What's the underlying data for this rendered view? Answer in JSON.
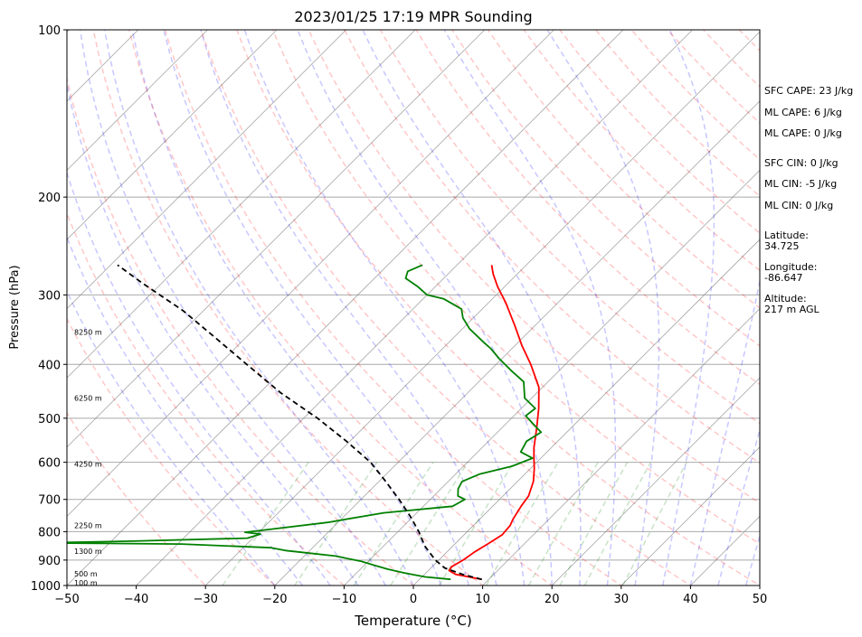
{
  "chart_data": {
    "type": "line",
    "title": "2023/01/25 17:19 MPR Sounding",
    "xlabel": "Temperature (°C)",
    "ylabel": "Pressure (hPa)",
    "xlim": [
      -50,
      50
    ],
    "ylim": [
      1000,
      100
    ],
    "y_scale": "log",
    "x_ticks": [
      -50,
      -40,
      -30,
      -20,
      -10,
      0,
      10,
      20,
      30,
      40,
      50
    ],
    "x_tick_labels": [
      "−50",
      "−40",
      "−30",
      "−20",
      "−10",
      "0",
      "10",
      "20",
      "30",
      "40",
      "50"
    ],
    "y_ticks": [
      1000,
      900,
      800,
      700,
      600,
      500,
      400,
      300,
      200,
      100
    ],
    "y_tick_labels": [
      "1000",
      "900",
      "800",
      "700",
      "600",
      "500",
      "400",
      "300",
      "200",
      "100"
    ],
    "skew": true,
    "grid": true,
    "series": [
      {
        "color": "#ff0000",
        "points": [
          [
            9.0,
            975
          ],
          [
            4.5,
            955
          ],
          [
            3.0,
            940
          ],
          [
            2.8,
            925
          ],
          [
            3.5,
            900
          ],
          [
            4.0,
            870
          ],
          [
            4.8,
            840
          ],
          [
            5.5,
            810
          ],
          [
            5.3,
            780
          ],
          [
            4.8,
            760
          ],
          [
            4.1,
            720
          ],
          [
            3.7,
            690
          ],
          [
            2.3,
            650
          ],
          [
            0.5,
            615
          ],
          [
            -1.0,
            590
          ],
          [
            -2.5,
            565
          ],
          [
            -5.0,
            520
          ],
          [
            -7.5,
            480
          ],
          [
            -10.5,
            440
          ],
          [
            -15.0,
            400
          ],
          [
            -19.0,
            370
          ],
          [
            -23.0,
            340
          ],
          [
            -27.5,
            310
          ],
          [
            -31.0,
            290
          ],
          [
            -33.5,
            275
          ],
          [
            -35.0,
            265
          ]
        ]
      },
      {
        "color": "#008000",
        "points": [
          [
            4.5,
            975
          ],
          [
            0.5,
            965
          ],
          [
            -3.0,
            950
          ],
          [
            -6.0,
            935
          ],
          [
            -8.5,
            920
          ],
          [
            -11.0,
            905
          ],
          [
            -15.5,
            885
          ],
          [
            -21.5,
            870
          ],
          [
            -23.5,
            865
          ],
          [
            -26.0,
            855
          ],
          [
            -39.5,
            842
          ],
          [
            -60.0,
            838
          ],
          [
            -47.0,
            832
          ],
          [
            -30.8,
            822
          ],
          [
            -29.5,
            808
          ],
          [
            -32.0,
            802
          ],
          [
            -28.0,
            790
          ],
          [
            -21.5,
            770
          ],
          [
            -14.8,
            740
          ],
          [
            -5.8,
            720
          ],
          [
            -5.0,
            700
          ],
          [
            -6.5,
            690
          ],
          [
            -7.5,
            670
          ],
          [
            -8.0,
            650
          ],
          [
            -6.5,
            630
          ],
          [
            -3.0,
            610
          ],
          [
            -1.2,
            590
          ],
          [
            -3.8,
            575
          ],
          [
            -4.5,
            550
          ],
          [
            -3.7,
            530
          ],
          [
            -6.3,
            510
          ],
          [
            -8.3,
            495
          ],
          [
            -8.0,
            480
          ],
          [
            -11.0,
            460
          ],
          [
            -13.5,
            430
          ],
          [
            -17.0,
            410
          ],
          [
            -20.5,
            390
          ],
          [
            -23.0,
            375
          ],
          [
            -25.0,
            365
          ],
          [
            -29.0,
            345
          ],
          [
            -31.5,
            330
          ],
          [
            -33.0,
            318
          ],
          [
            -37.0,
            305
          ],
          [
            -40.0,
            300
          ],
          [
            -42.5,
            290
          ],
          [
            -45.5,
            280
          ],
          [
            -46.2,
            272
          ],
          [
            -45.0,
            265
          ]
        ]
      },
      {
        "color": "#000000",
        "dashed": true,
        "points": [
          [
            9.0,
            975
          ],
          [
            5.5,
            955
          ],
          [
            2.0,
            930
          ],
          [
            -0.5,
            900
          ],
          [
            -4.0,
            850
          ],
          [
            -7.0,
            800
          ],
          [
            -10.5,
            750
          ],
          [
            -14.5,
            700
          ],
          [
            -19.0,
            650
          ],
          [
            -24.0,
            600
          ],
          [
            -30.5,
            550
          ],
          [
            -38.0,
            500
          ],
          [
            -47.0,
            450
          ],
          [
            -56.0,
            400
          ],
          [
            -64.0,
            360
          ],
          [
            -73.0,
            320
          ],
          [
            -83.0,
            285
          ],
          [
            -89.0,
            265
          ]
        ]
      }
    ],
    "height_labels": [
      {
        "text": "100 m",
        "pressure": 988
      },
      {
        "text": "500 m",
        "pressure": 952
      },
      {
        "text": "1300 m",
        "pressure": 868
      },
      {
        "text": "2250 m",
        "pressure": 780
      },
      {
        "text": "4250 m",
        "pressure": 604
      },
      {
        "text": "6250 m",
        "pressure": 460
      },
      {
        "text": "8250 m",
        "pressure": 350
      }
    ],
    "annotations": [
      "SFC CAPE: 23 J/kg",
      "ML CAPE: 6 J/kg",
      "ML CAPE: 0 J/kg",
      "SFC CIN: 0 J/kg",
      "ML CIN: -5 J/kg",
      "ML CIN: 0 J/kg",
      "Latitude:\n34.725",
      "Longitude:\n-86.647",
      "Altitude:\n217 m AGL"
    ],
    "reference_lines": {
      "dry_adiabats_color": "#ff0000",
      "moist_adiabats_color": "#0000ff",
      "mixing_ratio_color": "#008000",
      "isotherm_color": "#808080"
    }
  }
}
